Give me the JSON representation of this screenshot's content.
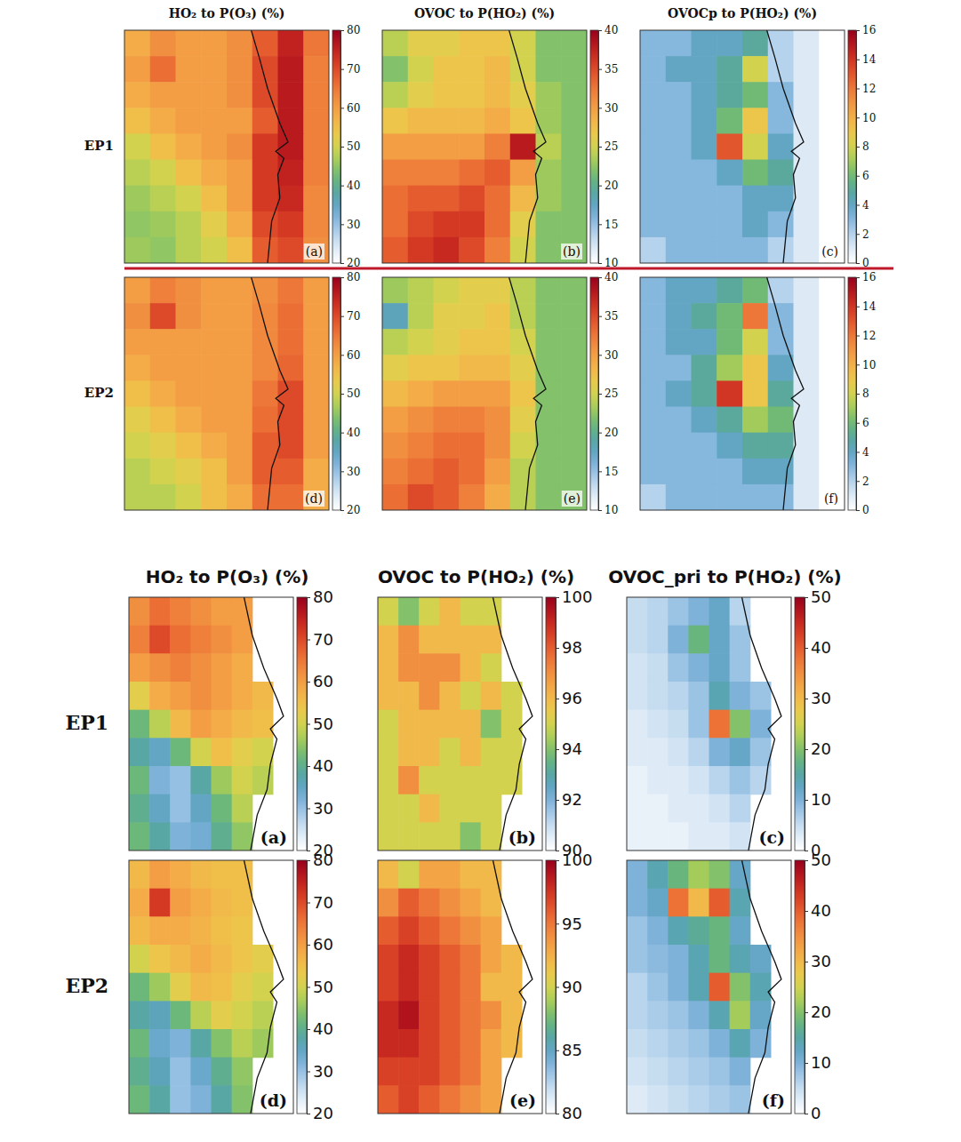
{
  "chart_data": [
    {
      "type": "heatmap",
      "title": "HO₂ to P(O₃) (%)",
      "row_label": "EP1",
      "panel_label": "(a)",
      "cells": [
        [
          58,
          62,
          60,
          60,
          62,
          68,
          75,
          65
        ],
        [
          60,
          66,
          60,
          60,
          62,
          70,
          76,
          64
        ],
        [
          58,
          60,
          60,
          60,
          62,
          70,
          76,
          64
        ],
        [
          55,
          58,
          60,
          60,
          60,
          68,
          76,
          64
        ],
        [
          50,
          55,
          58,
          60,
          62,
          72,
          76,
          64
        ],
        [
          48,
          50,
          55,
          58,
          60,
          72,
          75,
          64
        ],
        [
          46,
          48,
          50,
          55,
          60,
          72,
          74,
          63
        ],
        [
          45,
          46,
          48,
          52,
          58,
          70,
          72,
          63
        ],
        [
          46,
          45,
          48,
          50,
          55,
          68,
          70,
          62
        ]
      ],
      "zlim": [
        20,
        80
      ],
      "zticks": [
        20,
        30,
        40,
        50,
        60,
        70,
        80
      ]
    },
    {
      "type": "heatmap",
      "title": "OVOC to P(HO₂) (%)",
      "panel_label": "(b)",
      "cells": [
        [
          24,
          26,
          26,
          27,
          27,
          25,
          22,
          22
        ],
        [
          22,
          25,
          27,
          27,
          28,
          25,
          22,
          22
        ],
        [
          24,
          26,
          27,
          27,
          28,
          26,
          23,
          22
        ],
        [
          27,
          28,
          28,
          28,
          29,
          27,
          23,
          22
        ],
        [
          30,
          30,
          30,
          30,
          32,
          38,
          24,
          22
        ],
        [
          32,
          32,
          32,
          33,
          34,
          30,
          23,
          22
        ],
        [
          33,
          34,
          34,
          35,
          33,
          28,
          23,
          22
        ],
        [
          33,
          35,
          36,
          36,
          33,
          26,
          22,
          22
        ],
        [
          34,
          36,
          37,
          35,
          32,
          25,
          22,
          22
        ]
      ],
      "zlim": [
        10,
        40
      ],
      "zticks": [
        10,
        15,
        20,
        25,
        30,
        35,
        40
      ]
    },
    {
      "type": "heatmap",
      "title": "OVOCp to P(HO₂) (%)",
      "panel_label": "(c)",
      "cells": [
        [
          3,
          3,
          4,
          4,
          5,
          2,
          1,
          0
        ],
        [
          3,
          4,
          4,
          5,
          8,
          2,
          1,
          0
        ],
        [
          3,
          3,
          4,
          5,
          6,
          3,
          1,
          0
        ],
        [
          3,
          3,
          4,
          6,
          9,
          3,
          1,
          0
        ],
        [
          3,
          3,
          4,
          13,
          8,
          4,
          1,
          0
        ],
        [
          3,
          3,
          3,
          4,
          6,
          5,
          1,
          0
        ],
        [
          3,
          3,
          3,
          3,
          4,
          4,
          1,
          0
        ],
        [
          3,
          3,
          3,
          3,
          4,
          3,
          1,
          0
        ],
        [
          2,
          3,
          3,
          3,
          3,
          2,
          1,
          0
        ]
      ],
      "zlim": [
        0,
        16
      ],
      "zticks": [
        0,
        2,
        4,
        6,
        8,
        10,
        12,
        14,
        16
      ]
    },
    {
      "type": "heatmap",
      "row_label": "EP2",
      "panel_label": "(d)",
      "cells": [
        [
          60,
          64,
          62,
          60,
          60,
          62,
          65,
          60
        ],
        [
          62,
          70,
          62,
          60,
          60,
          63,
          66,
          60
        ],
        [
          60,
          60,
          60,
          60,
          60,
          63,
          66,
          60
        ],
        [
          58,
          60,
          60,
          60,
          60,
          63,
          67,
          60
        ],
        [
          55,
          58,
          60,
          60,
          60,
          65,
          70,
          60
        ],
        [
          52,
          55,
          58,
          60,
          60,
          66,
          70,
          60
        ],
        [
          50,
          52,
          55,
          58,
          60,
          68,
          70,
          60
        ],
        [
          48,
          50,
          52,
          55,
          60,
          68,
          68,
          58
        ],
        [
          48,
          48,
          50,
          55,
          58,
          66,
          66,
          58
        ]
      ],
      "zlim": [
        20,
        80
      ],
      "zticks": [
        20,
        30,
        40,
        50,
        60,
        70,
        80
      ]
    },
    {
      "type": "heatmap",
      "panel_label": "(e)",
      "cells": [
        [
          23,
          24,
          25,
          26,
          26,
          24,
          22,
          22
        ],
        [
          18,
          24,
          26,
          26,
          27,
          24,
          22,
          22
        ],
        [
          24,
          25,
          26,
          27,
          27,
          25,
          22,
          22
        ],
        [
          26,
          27,
          27,
          28,
          28,
          26,
          22,
          22
        ],
        [
          28,
          29,
          30,
          30,
          30,
          27,
          22,
          22
        ],
        [
          30,
          31,
          32,
          32,
          31,
          26,
          22,
          22
        ],
        [
          31,
          32,
          33,
          33,
          31,
          25,
          22,
          22
        ],
        [
          32,
          33,
          34,
          33,
          30,
          24,
          22,
          22
        ],
        [
          33,
          35,
          34,
          32,
          29,
          24,
          22,
          22
        ]
      ],
      "zlim": [
        10,
        40
      ],
      "zticks": [
        10,
        15,
        20,
        25,
        30,
        35,
        40
      ]
    },
    {
      "type": "heatmap",
      "panel_label": "(f)",
      "cells": [
        [
          3,
          4,
          4,
          5,
          6,
          2,
          1,
          0
        ],
        [
          3,
          4,
          5,
          6,
          12,
          3,
          1,
          0
        ],
        [
          3,
          4,
          4,
          6,
          8,
          3,
          1,
          0
        ],
        [
          3,
          3,
          5,
          7,
          9,
          4,
          1,
          0
        ],
        [
          3,
          4,
          5,
          14,
          9,
          5,
          1,
          0
        ],
        [
          3,
          3,
          4,
          5,
          7,
          6,
          1,
          0
        ],
        [
          3,
          3,
          3,
          4,
          5,
          5,
          1,
          0
        ],
        [
          3,
          3,
          3,
          3,
          4,
          4,
          1,
          0
        ],
        [
          2,
          3,
          3,
          3,
          3,
          3,
          1,
          0
        ]
      ],
      "zlim": [
        0,
        16
      ],
      "zticks": [
        0,
        2,
        4,
        6,
        8,
        10,
        12,
        14,
        16
      ]
    },
    {
      "type": "heatmap",
      "title": "HO₂ to P(O₃) (%)",
      "row_label": "EP1",
      "panel_label": "(a)",
      "cells": [
        [
          62,
          66,
          64,
          62,
          60,
          60,
          null,
          null
        ],
        [
          64,
          70,
          66,
          64,
          62,
          60,
          null,
          null
        ],
        [
          60,
          62,
          64,
          62,
          60,
          58,
          null,
          null
        ],
        [
          52,
          58,
          60,
          62,
          60,
          58,
          56,
          null
        ],
        [
          42,
          48,
          56,
          60,
          58,
          56,
          55,
          null
        ],
        [
          38,
          35,
          42,
          50,
          55,
          52,
          50,
          null
        ],
        [
          42,
          32,
          30,
          38,
          46,
          50,
          48,
          null
        ],
        [
          40,
          35,
          30,
          35,
          42,
          48,
          null,
          null
        ],
        [
          42,
          38,
          32,
          33,
          40,
          45,
          null,
          null
        ]
      ],
      "zlim": [
        20,
        80
      ],
      "zticks": [
        20,
        30,
        40,
        50,
        60,
        70,
        80
      ]
    },
    {
      "type": "heatmap",
      "title": "OVOC to P(HO₂) (%)",
      "panel_label": "(b)",
      "cells": [
        [
          95,
          94,
          95,
          96,
          95,
          95,
          null,
          null
        ],
        [
          96,
          97,
          96,
          96,
          96,
          96,
          null,
          null
        ],
        [
          96,
          97,
          97,
          97,
          96,
          95,
          null,
          null
        ],
        [
          96,
          96,
          97,
          96,
          95,
          96,
          95,
          null
        ],
        [
          95,
          96,
          96,
          96,
          96,
          94,
          95,
          null
        ],
        [
          95,
          96,
          96,
          95,
          96,
          95,
          95,
          null
        ],
        [
          95,
          97,
          95,
          95,
          95,
          95,
          95,
          null
        ],
        [
          95,
          95,
          96,
          95,
          95,
          95,
          null,
          null
        ],
        [
          95,
          95,
          95,
          95,
          94,
          95,
          null,
          null
        ]
      ],
      "zlim": [
        90,
        100
      ],
      "zticks": [
        90,
        92,
        94,
        96,
        98,
        100
      ]
    },
    {
      "type": "heatmap",
      "title": "OVOC_pri to P(HO₂) (%)",
      "panel_label": "(c)",
      "cells": [
        [
          5,
          6,
          8,
          10,
          12,
          6,
          null,
          null
        ],
        [
          5,
          6,
          10,
          18,
          12,
          8,
          null,
          null
        ],
        [
          4,
          5,
          8,
          10,
          12,
          8,
          null,
          null
        ],
        [
          4,
          5,
          6,
          8,
          14,
          10,
          8,
          null
        ],
        [
          3,
          4,
          5,
          8,
          38,
          20,
          10,
          null
        ],
        [
          3,
          3,
          4,
          6,
          10,
          12,
          8,
          null
        ],
        [
          2,
          3,
          3,
          4,
          6,
          8,
          6,
          null
        ],
        [
          2,
          2,
          3,
          3,
          4,
          6,
          null,
          null
        ],
        [
          2,
          2,
          2,
          3,
          3,
          4,
          null,
          null
        ]
      ],
      "zlim": [
        0,
        50
      ],
      "zticks": [
        0,
        10,
        20,
        30,
        40,
        50
      ]
    },
    {
      "type": "heatmap",
      "row_label": "EP2",
      "panel_label": "(d)",
      "cells": [
        [
          56,
          60,
          58,
          56,
          55,
          55,
          null,
          null
        ],
        [
          58,
          72,
          60,
          58,
          56,
          55,
          null,
          null
        ],
        [
          56,
          58,
          58,
          57,
          55,
          54,
          null,
          null
        ],
        [
          50,
          54,
          56,
          58,
          56,
          54,
          52,
          null
        ],
        [
          42,
          46,
          52,
          56,
          55,
          52,
          50,
          null
        ],
        [
          38,
          36,
          42,
          48,
          52,
          50,
          48,
          null
        ],
        [
          42,
          34,
          32,
          38,
          44,
          48,
          46,
          null
        ],
        [
          40,
          36,
          30,
          34,
          40,
          45,
          null,
          null
        ],
        [
          42,
          38,
          30,
          32,
          38,
          44,
          null,
          null
        ]
      ],
      "zlim": [
        20,
        80
      ],
      "zticks": [
        20,
        30,
        40,
        50,
        60,
        70,
        80
      ]
    },
    {
      "type": "heatmap",
      "panel_label": "(e)",
      "cells": [
        [
          92,
          90,
          93,
          93,
          92,
          92,
          null,
          null
        ],
        [
          94,
          96,
          95,
          94,
          93,
          92,
          null,
          null
        ],
        [
          96,
          97,
          96,
          95,
          94,
          93,
          null,
          null
        ],
        [
          97,
          98,
          97,
          96,
          95,
          93,
          92,
          null
        ],
        [
          97,
          98,
          97,
          96,
          95,
          92,
          92,
          null
        ],
        [
          98,
          99,
          97,
          96,
          95,
          94,
          92,
          null
        ],
        [
          98,
          98,
          97,
          96,
          95,
          93,
          92,
          null
        ],
        [
          97,
          97,
          97,
          96,
          95,
          93,
          null,
          null
        ],
        [
          96,
          97,
          96,
          95,
          94,
          93,
          null,
          null
        ]
      ],
      "zlim": [
        80,
        100
      ],
      "zticks": [
        80,
        85,
        90,
        95,
        100
      ]
    },
    {
      "type": "heatmap",
      "panel_label": "(f)",
      "cells": [
        [
          10,
          14,
          18,
          22,
          20,
          12,
          null,
          null
        ],
        [
          10,
          12,
          38,
          30,
          40,
          14,
          null,
          null
        ],
        [
          8,
          10,
          14,
          16,
          18,
          12,
          null,
          null
        ],
        [
          8,
          9,
          10,
          14,
          18,
          14,
          12,
          null
        ],
        [
          6,
          8,
          10,
          14,
          40,
          20,
          14,
          null
        ],
        [
          6,
          7,
          8,
          10,
          14,
          22,
          12,
          null
        ],
        [
          5,
          6,
          7,
          8,
          10,
          14,
          10,
          null
        ],
        [
          4,
          5,
          6,
          7,
          8,
          10,
          null,
          null
        ],
        [
          3,
          4,
          5,
          6,
          7,
          8,
          null,
          null
        ]
      ],
      "zlim": [
        0,
        50
      ],
      "zticks": [
        0,
        10,
        20,
        30,
        40,
        50
      ]
    }
  ]
}
